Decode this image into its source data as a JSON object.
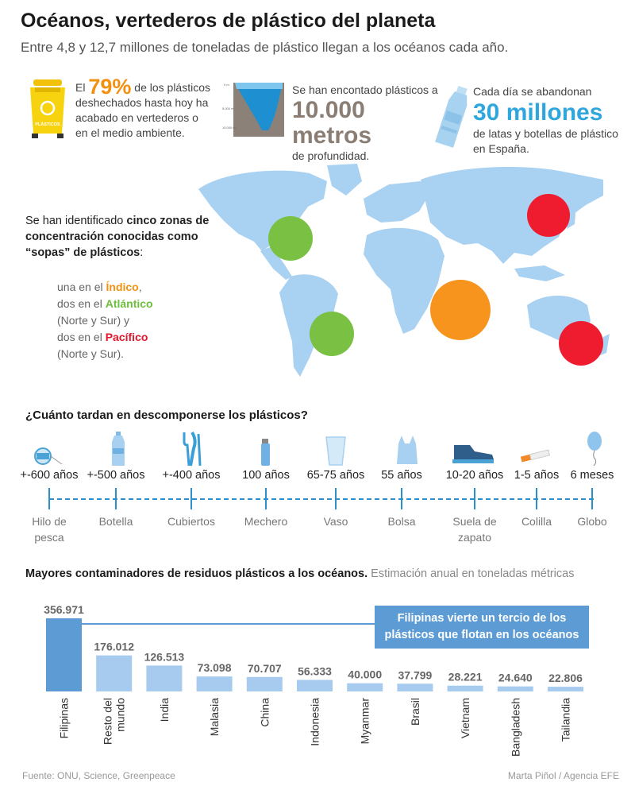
{
  "header": {
    "title": "Océanos, vertederos de plástico del planeta",
    "subtitle": "Entre 4,8 y 12,7 millones de toneladas de plástico llegan a los océanos cada año."
  },
  "stats": {
    "landfill": {
      "pre": "El",
      "highlight": "79%",
      "post": "de los plásticos deshechados hasta hoy ha acabado en vertederos o en el medio ambiente.",
      "bin_label": "PLÁSTICOS"
    },
    "depth": {
      "pre": "Se han encontado plásticos a",
      "highlight": "10.000 metros",
      "post": "de profundidad.",
      "scale": [
        "0 m",
        "5.000 m",
        "10.000 m"
      ]
    },
    "bottles": {
      "pre": "Cada día se abandonan",
      "highlight": "30 millones",
      "post": "de latas y botellas de plástico en España."
    }
  },
  "zones": {
    "intro_a": "Se han identificado",
    "intro_b": "cinco zonas de concentración conocidas como “sopas” de plásticos",
    "intro_c": ":",
    "l1_pre": "una en el",
    "l1_ocean": "Índico",
    "l1_post": ",",
    "l2_pre": "dos en el",
    "l2_ocean": "Atlántico",
    "l3": "(Norte y Sur) y",
    "l4_pre": "dos en el",
    "l4_ocean": "Pacífico",
    "l5": "(Norte y Sur).",
    "colors": {
      "indico": "#f7941e",
      "atlantico": "#79c043",
      "pacifico": "#ee1c2e"
    }
  },
  "decomposition": {
    "title": "¿Cuánto tardan en descomponerse los plásticos?",
    "items": [
      {
        "years": "+-600 años",
        "name": "Hilo de pesca",
        "icon": "fishing-line-icon"
      },
      {
        "years": "+-500 años",
        "name": "Botella",
        "icon": "bottle-icon"
      },
      {
        "years": "+-400 años",
        "name": "Cubiertos",
        "icon": "cutlery-icon"
      },
      {
        "years": "100 años",
        "name": "Mechero",
        "icon": "lighter-icon"
      },
      {
        "years": "65-75 años",
        "name": "Vaso",
        "icon": "cup-icon"
      },
      {
        "years": "55 años",
        "name": "Bolsa",
        "icon": "bag-icon"
      },
      {
        "years": "10-20 años",
        "name": "Suela de zapato",
        "icon": "shoe-icon"
      },
      {
        "years": "1-5 años",
        "name": "Colilla",
        "icon": "cigarette-icon"
      },
      {
        "years": "6 meses",
        "name": "Globo",
        "icon": "balloon-icon"
      }
    ]
  },
  "polluters": {
    "title_bold": "Mayores contaminadores de residuos plásticos a los océanos.",
    "title_rest": " Estimación anual en toneladas métricas",
    "callout": "Filipinas vierte un tercio de los plásticos que flotan en los océanos"
  },
  "chart_data": {
    "type": "bar",
    "categories": [
      "Filipinas",
      "Resto del mundo",
      "India",
      "Malasia",
      "China",
      "Indonesia",
      "Myanmar",
      "Brasil",
      "Vietnam",
      "Bangladesh",
      "Tailandia"
    ],
    "value_labels": [
      "356.971",
      "176.012",
      "126.513",
      "73.098",
      "70.707",
      "56.333",
      "40.000",
      "37.799",
      "28.221",
      "24.640",
      "22.806"
    ],
    "values": [
      356971,
      176012,
      126513,
      73098,
      70707,
      56333,
      40000,
      37799,
      28221,
      24640,
      22806
    ],
    "title": "Mayores contaminadores de residuos plásticos a los océanos.",
    "ylabel": "",
    "ylim": [
      0,
      356971
    ],
    "colors": {
      "highlight": "#5d9bd4",
      "default": "#a6cbef"
    }
  },
  "footer": {
    "source": "Fuente: ONU, Science, Greenpeace",
    "credit": "Marta Piñol / Agencia EFE"
  }
}
